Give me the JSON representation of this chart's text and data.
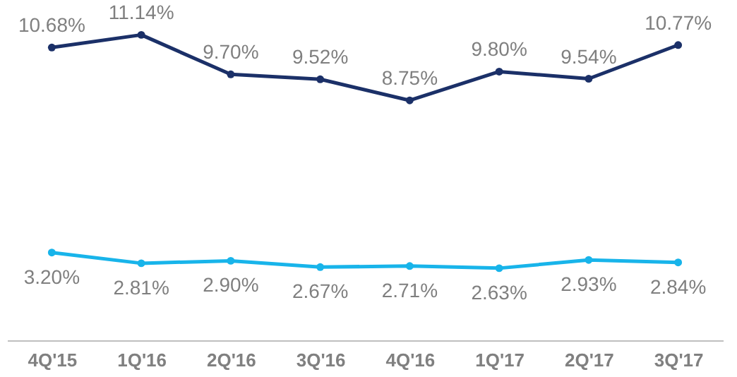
{
  "chart_data": {
    "type": "line",
    "categories": [
      "4Q'15",
      "1Q'16",
      "2Q'16",
      "3Q'16",
      "4Q'16",
      "1Q'17",
      "2Q'17",
      "3Q'17"
    ],
    "series": [
      {
        "color": "#1b3068",
        "values": [
          10.68,
          11.14,
          9.7,
          9.52,
          8.75,
          9.8,
          9.54,
          10.77
        ],
        "value_labels": [
          "10.68%",
          "11.14%",
          "9.70%",
          "9.52%",
          "8.75%",
          "9.80%",
          "9.54%",
          "10.77%"
        ]
      },
      {
        "color": "#18b4ea",
        "values": [
          3.2,
          2.81,
          2.9,
          2.67,
          2.71,
          2.63,
          2.93,
          2.84
        ],
        "value_labels": [
          "3.20%",
          "2.81%",
          "2.90%",
          "2.67%",
          "2.71%",
          "2.63%",
          "2.93%",
          "2.84%"
        ]
      }
    ],
    "tick_labels": "x",
    "marker": "circle",
    "line_style": "solid"
  }
}
